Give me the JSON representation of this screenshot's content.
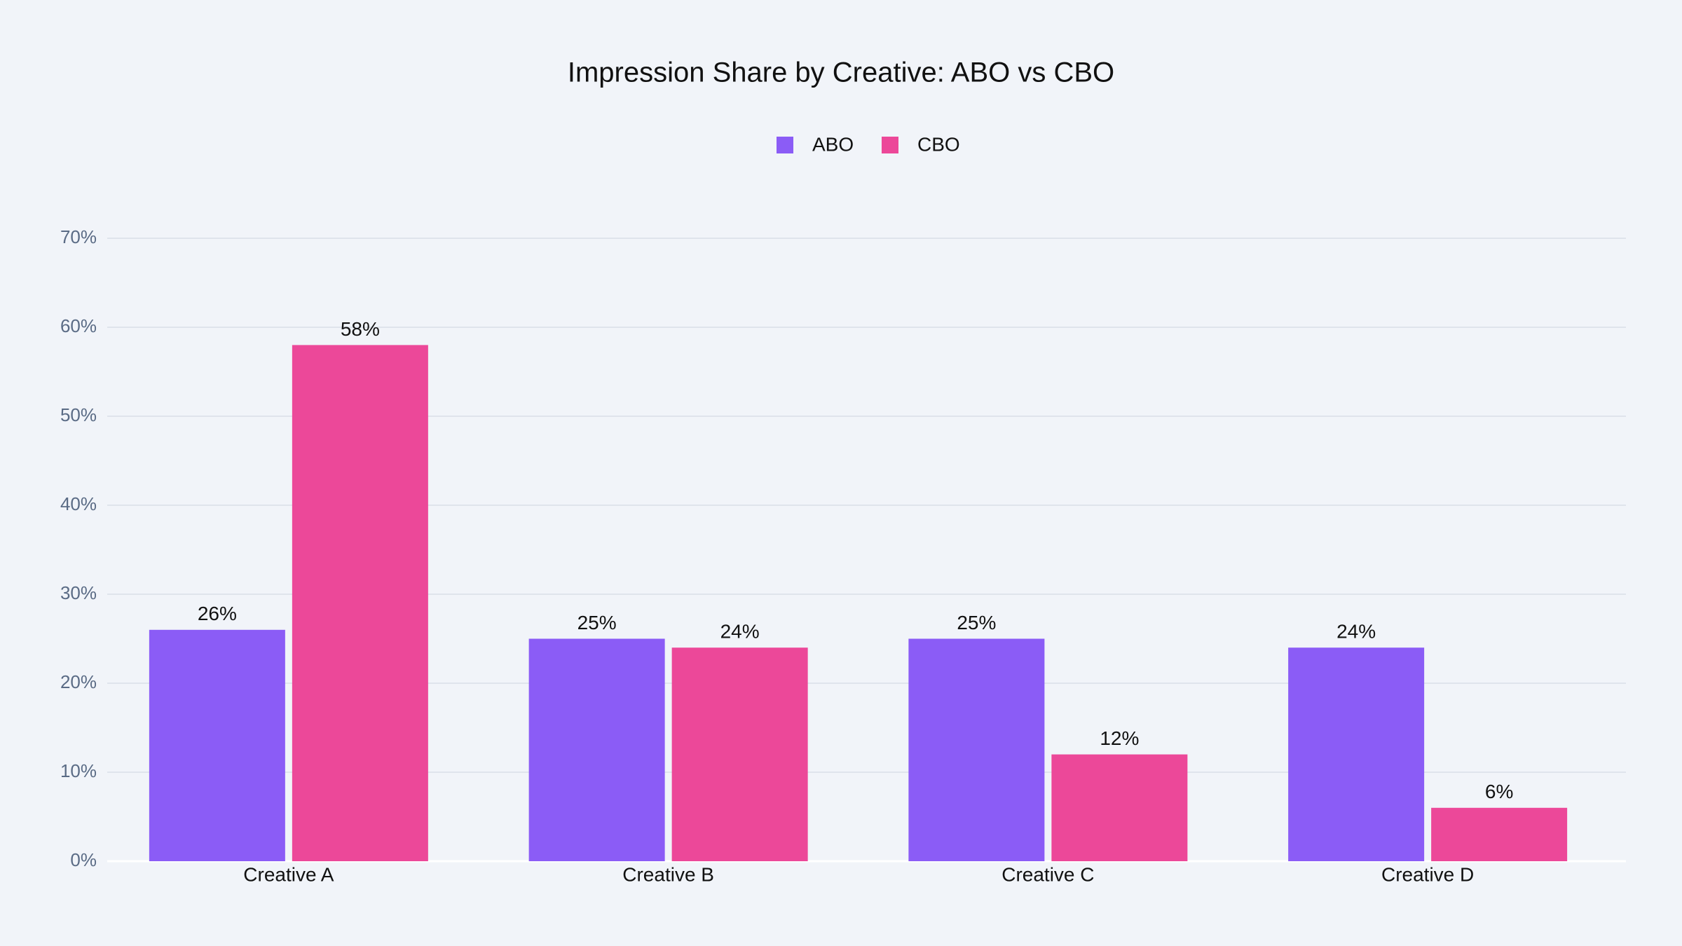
{
  "chart_data": {
    "type": "bar",
    "title": "Impression Share by Creative: ABO vs CBO",
    "categories": [
      "Creative A",
      "Creative B",
      "Creative C",
      "Creative D"
    ],
    "series": [
      {
        "name": "ABO",
        "color": "#8b5cf6",
        "values": [
          26,
          25,
          25,
          24
        ],
        "value_labels": [
          "26%",
          "25%",
          "25%",
          "24%"
        ]
      },
      {
        "name": "CBO",
        "color": "#ec4899",
        "values": [
          58,
          24,
          12,
          6
        ],
        "value_labels": [
          "58%",
          "24%",
          "12%",
          "6%"
        ]
      }
    ],
    "ylim": [
      0,
      70
    ],
    "yticks": [
      {
        "value": 0,
        "label": "0%"
      },
      {
        "value": 10,
        "label": "10%"
      },
      {
        "value": 20,
        "label": "20%"
      },
      {
        "value": 30,
        "label": "30%"
      },
      {
        "value": 40,
        "label": "40%"
      },
      {
        "value": 50,
        "label": "50%"
      },
      {
        "value": 60,
        "label": "60%"
      },
      {
        "value": 70,
        "label": "70%"
      }
    ],
    "grid": true,
    "legend": "top"
  }
}
